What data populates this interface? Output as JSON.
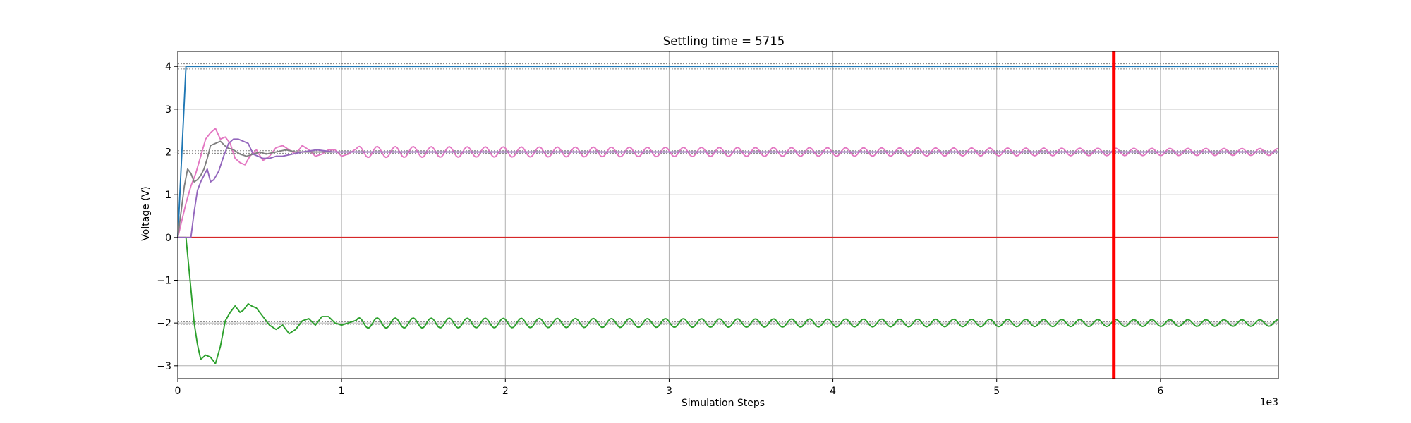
{
  "chart_data": {
    "type": "line",
    "title": "Settling time = 5715",
    "xlabel": "Simulation Steps",
    "ylabel": "Voltage (V)",
    "x_offset_text": "1e3",
    "xlim": [
      0,
      6720
    ],
    "ylim": [
      -3.3,
      4.35
    ],
    "x_ticks": [
      0,
      1000,
      2000,
      3000,
      4000,
      5000,
      6000
    ],
    "x_tick_labels": [
      "0",
      "1",
      "2",
      "3",
      "4",
      "5",
      "6"
    ],
    "y_ticks": [
      -3,
      -2,
      -1,
      0,
      1,
      2,
      3,
      4
    ],
    "y_tick_labels": [
      "−3",
      "−2",
      "−1",
      "0",
      "1",
      "2",
      "3",
      "4"
    ],
    "grid": true,
    "settling_marker": {
      "x": 5715,
      "color": "#ff0000"
    },
    "reference_bands": [
      {
        "y": [
          3.94,
          4.06
        ],
        "color": "#7f7f7f"
      },
      {
        "y": [
          1.97,
          2.03
        ],
        "color": "#7f7f7f"
      },
      {
        "y": [
          -2.03,
          -1.97
        ],
        "color": "#7f7f7f"
      }
    ],
    "series": [
      {
        "color": "#1f77b4",
        "kind": "step",
        "x": [
          0,
          50,
          6720
        ],
        "y": [
          0,
          4,
          4
        ]
      },
      {
        "color": "#d62728",
        "kind": "flat",
        "x": [
          0,
          6720
        ],
        "y": [
          0,
          0
        ]
      },
      {
        "color": "#2ca02c",
        "kind": "osc",
        "x": [
          0,
          50,
          80,
          100,
          120,
          140,
          170,
          200,
          230,
          260,
          290,
          320,
          350,
          380,
          400,
          430,
          450,
          480,
          520,
          560,
          600,
          640,
          680,
          720,
          760,
          800,
          840,
          880,
          920,
          960,
          1000,
          1040,
          1080
        ],
        "y": [
          0,
          0,
          -1.2,
          -2.0,
          -2.5,
          -2.85,
          -2.75,
          -2.8,
          -2.95,
          -2.55,
          -1.95,
          -1.75,
          -1.6,
          -1.75,
          -1.7,
          -1.55,
          -1.6,
          -1.65,
          -1.85,
          -2.05,
          -2.15,
          -2.05,
          -2.25,
          -2.15,
          -1.95,
          -1.9,
          -2.05,
          -1.85,
          -1.85,
          -2.0,
          -2.05,
          -2.0,
          -1.95
        ],
        "osc_period": 110,
        "osc_amp0": 0.09,
        "osc_decay": 0.00012,
        "target": -2.0
      },
      {
        "color": "#e377c2",
        "kind": "osc",
        "x": [
          0,
          50,
          80,
          110,
          140,
          170,
          200,
          230,
          260,
          290,
          320,
          350,
          380,
          410,
          440,
          480,
          520,
          560,
          600,
          640,
          680,
          720,
          760,
          800,
          840,
          880,
          920,
          960,
          1000,
          1040,
          1080
        ],
        "y": [
          0,
          0.8,
          1.2,
          1.5,
          1.9,
          2.3,
          2.45,
          2.55,
          2.3,
          2.35,
          2.2,
          1.85,
          1.75,
          1.7,
          1.9,
          2.05,
          1.8,
          1.9,
          2.1,
          2.15,
          2.05,
          1.95,
          2.15,
          2.05,
          1.9,
          1.95,
          2.05,
          2.05,
          1.9,
          1.95,
          2.05
        ],
        "osc_period": 110,
        "osc_amp0": 0.1,
        "osc_decay": 0.00012,
        "target": 2.0
      },
      {
        "color": "#7f7f7f",
        "kind": "settle",
        "x": [
          0,
          40,
          60,
          80,
          100,
          120,
          140,
          160,
          180,
          200,
          230,
          260,
          300,
          340,
          380,
          420,
          460,
          500,
          540,
          600,
          660,
          720,
          800,
          900,
          1000,
          6720
        ],
        "y": [
          0,
          1.2,
          1.6,
          1.5,
          1.3,
          1.35,
          1.45,
          1.6,
          1.85,
          2.15,
          2.2,
          2.25,
          2.1,
          2.05,
          1.95,
          1.9,
          1.95,
          2.0,
          1.95,
          2.0,
          2.05,
          2.0,
          2.0,
          2.0,
          2.0,
          2.0
        ]
      },
      {
        "color": "#9467bd",
        "kind": "settle",
        "x": [
          0,
          80,
          100,
          120,
          140,
          160,
          180,
          200,
          220,
          250,
          280,
          310,
          340,
          370,
          400,
          430,
          460,
          490,
          520,
          560,
          600,
          640,
          700,
          760,
          850,
          950,
          1100,
          6720
        ],
        "y": [
          0,
          0,
          0.6,
          1.1,
          1.3,
          1.45,
          1.6,
          1.3,
          1.35,
          1.55,
          1.9,
          2.2,
          2.3,
          2.3,
          2.25,
          2.2,
          1.95,
          1.9,
          1.85,
          1.85,
          1.9,
          1.9,
          1.95,
          2.0,
          2.05,
          2.0,
          2.0,
          2.0
        ]
      }
    ]
  }
}
